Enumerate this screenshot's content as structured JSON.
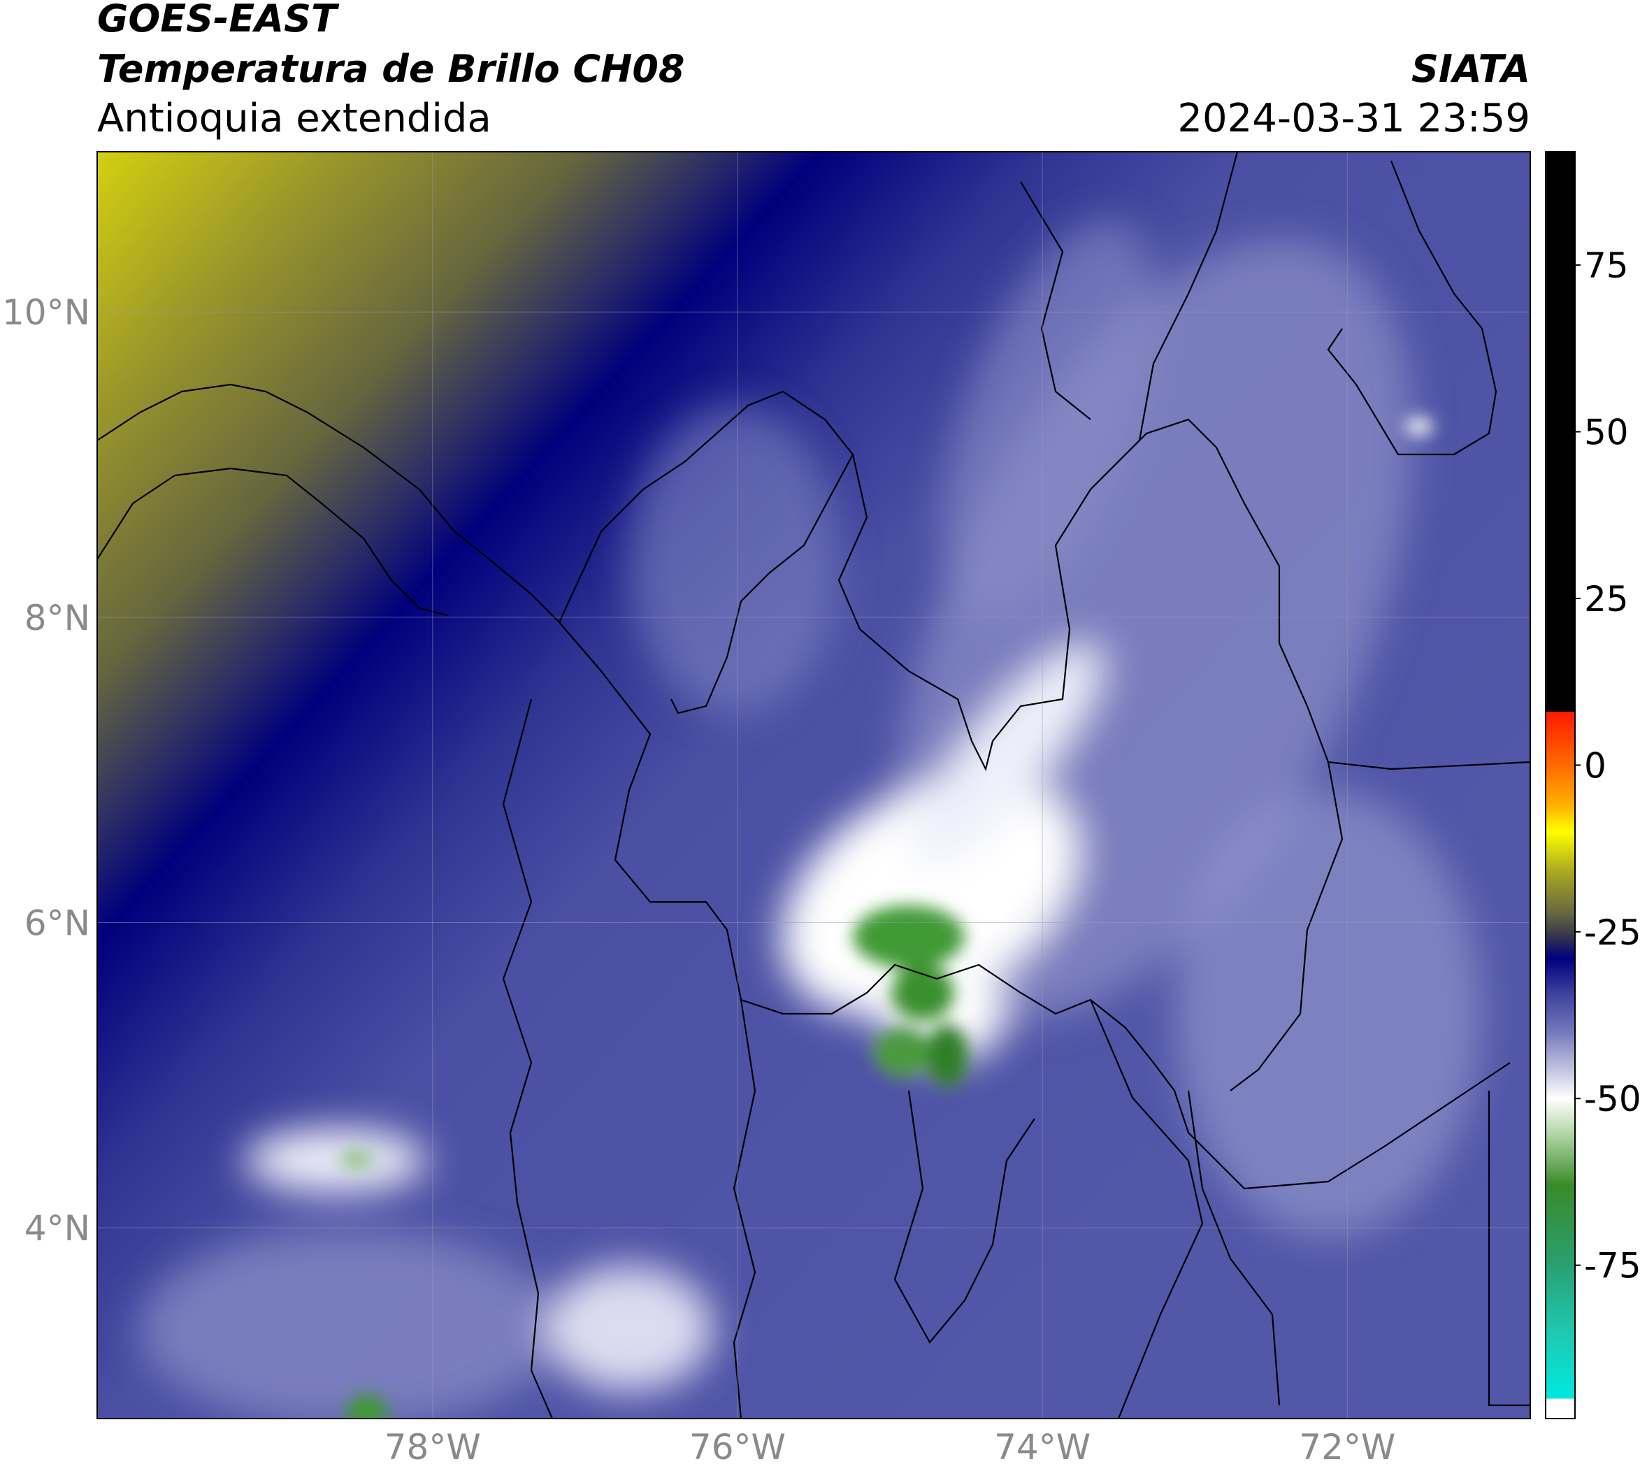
{
  "header": {
    "satellite": "GOES-EAST",
    "product": "Temperatura de Brillo CH08",
    "region": "Antioquia extendida",
    "source": "SIATA",
    "datetime": "2024-03-31 23:59"
  },
  "map": {
    "xlim": [
      -80.2,
      -70.8
    ],
    "ylim": [
      2.75,
      11.05
    ],
    "grid": true,
    "xticks": [
      {
        "value": -78,
        "label": "78°W"
      },
      {
        "value": -76,
        "label": "76°W"
      },
      {
        "value": -74,
        "label": "74°W"
      },
      {
        "value": -72,
        "label": "72°W"
      }
    ],
    "yticks": [
      {
        "value": 4,
        "label": "4°N"
      },
      {
        "value": 6,
        "label": "6°N"
      },
      {
        "value": 8,
        "label": "8°N"
      },
      {
        "value": 10,
        "label": "10°N"
      }
    ]
  },
  "colorbar": {
    "lim": [
      -98,
      92
    ],
    "ticks": [
      -75,
      -50,
      -25,
      0,
      25,
      50,
      75
    ],
    "stops": [
      {
        "value": 92,
        "color": "#000000"
      },
      {
        "value": 8,
        "color": "#000000"
      },
      {
        "value": 8,
        "color": "#ff1a00"
      },
      {
        "value": 0,
        "color": "#ff6a00"
      },
      {
        "value": -6,
        "color": "#ffb000"
      },
      {
        "value": -10,
        "color": "#ffff00"
      },
      {
        "value": -16,
        "color": "#a8a820"
      },
      {
        "value": -22,
        "color": "#6a6a40"
      },
      {
        "value": -26,
        "color": "#303050"
      },
      {
        "value": -29,
        "color": "#000080"
      },
      {
        "value": -34,
        "color": "#3a3f9c"
      },
      {
        "value": -40,
        "color": "#7478bc"
      },
      {
        "value": -46,
        "color": "#c6c8e4"
      },
      {
        "value": -50,
        "color": "#ffffff"
      },
      {
        "value": -56,
        "color": "#a8d09a"
      },
      {
        "value": -63,
        "color": "#3a8a2a"
      },
      {
        "value": -75,
        "color": "#2aa072"
      },
      {
        "value": -85,
        "color": "#20c8b0"
      },
      {
        "value": -95,
        "color": "#00e8e0"
      },
      {
        "value": -95,
        "color": "#ffffff"
      },
      {
        "value": -98,
        "color": "#ffffff"
      }
    ]
  }
}
